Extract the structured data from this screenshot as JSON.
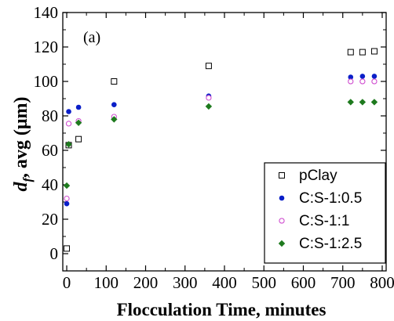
{
  "chart_data": {
    "type": "scatter",
    "title": "",
    "panel_label": "(a)",
    "xlabel": "Flocculation Time, minutes",
    "ylabel_main": "d",
    "ylabel_sub": "f",
    "ylabel_rest": ", avg (μm)",
    "xlim": [
      -10,
      810
    ],
    "ylim": [
      -10,
      140
    ],
    "xticks": [
      0,
      100,
      200,
      300,
      400,
      500,
      600,
      700,
      800
    ],
    "yticks": [
      0,
      20,
      40,
      60,
      80,
      100,
      120,
      140
    ],
    "legend_position": "lower-right",
    "series": [
      {
        "name": "pClay",
        "marker": "open-square",
        "color": "#000000",
        "x": [
          0,
          5,
          30,
          120,
          360,
          720,
          750,
          780
        ],
        "y": [
          3,
          63,
          66.5,
          100,
          109,
          117,
          117,
          117.5
        ]
      },
      {
        "name": "C:S-1:0.5",
        "marker": "filled-circle",
        "color": "#0a1fc8",
        "x": [
          0,
          5,
          30,
          120,
          360,
          720,
          750,
          780
        ],
        "y": [
          29,
          82.5,
          85,
          86.5,
          91.5,
          102.5,
          103,
          103
        ]
      },
      {
        "name": "C:S-1:1",
        "marker": "open-circle",
        "color": "#d04fd0",
        "x": [
          0,
          5,
          30,
          120,
          360,
          720,
          750,
          780
        ],
        "y": [
          32,
          75.5,
          77,
          79.5,
          90.5,
          100,
          100,
          100
        ]
      },
      {
        "name": "C:S-1:2.5",
        "marker": "filled-diamond",
        "color": "#1e7a1e",
        "x": [
          0,
          5,
          30,
          120,
          360,
          720,
          750,
          780
        ],
        "y": [
          39.5,
          63.5,
          76,
          78,
          85.5,
          88,
          88,
          88
        ]
      }
    ]
  }
}
